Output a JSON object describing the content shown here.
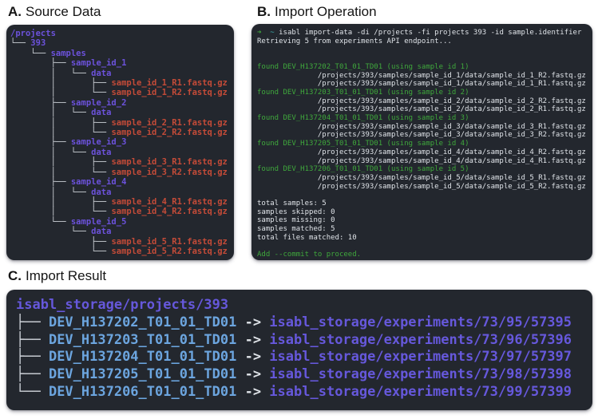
{
  "headings": {
    "a": {
      "prefix": "A.",
      "title": "Source Data"
    },
    "b": {
      "prefix": "B.",
      "title": "Import Operation"
    },
    "c": {
      "prefix": "C.",
      "title": "Import Result"
    }
  },
  "colors": {
    "terminal_bg": "#23272E",
    "tree_line": "#CDD2D8",
    "dir_purple": "#6C52DC",
    "file_red": "#C44B38",
    "text_white": "#DFE3E8",
    "green": "#3FA83C",
    "cyan": "#3CAFAF",
    "ident_blue": "#6CA5DF",
    "path_purple": "#6658DC"
  },
  "terminals": {
    "source_tree": {
      "lines": [
        [
          [
            "dir",
            "/projects"
          ]
        ],
        [
          [
            "tree",
            "└── "
          ],
          [
            "dir",
            "393"
          ]
        ],
        [
          [
            "tree",
            "    └── "
          ],
          [
            "dir",
            "samples"
          ]
        ],
        [
          [
            "tree",
            "        ├── "
          ],
          [
            "dir",
            "sample_id_1"
          ]
        ],
        [
          [
            "tree",
            "        │   └── "
          ],
          [
            "dir",
            "data"
          ]
        ],
        [
          [
            "tree",
            "        │       ├── "
          ],
          [
            "file",
            "sample_id_1_R1.fastq.gz"
          ]
        ],
        [
          [
            "tree",
            "        │       └── "
          ],
          [
            "file",
            "sample_id_1_R2.fastq.gz"
          ]
        ],
        [
          [
            "tree",
            "        ├── "
          ],
          [
            "dir",
            "sample_id_2"
          ]
        ],
        [
          [
            "tree",
            "        │   └── "
          ],
          [
            "dir",
            "data"
          ]
        ],
        [
          [
            "tree",
            "        │       ├── "
          ],
          [
            "file",
            "sample_id_2_R1.fastq.gz"
          ]
        ],
        [
          [
            "tree",
            "        │       └── "
          ],
          [
            "file",
            "sample_id_2_R2.fastq.gz"
          ]
        ],
        [
          [
            "tree",
            "        ├── "
          ],
          [
            "dir",
            "sample_id_3"
          ]
        ],
        [
          [
            "tree",
            "        │   └── "
          ],
          [
            "dir",
            "data"
          ]
        ],
        [
          [
            "tree",
            "        │       ├── "
          ],
          [
            "file",
            "sample_id_3_R1.fastq.gz"
          ]
        ],
        [
          [
            "tree",
            "        │       └── "
          ],
          [
            "file",
            "sample_id_3_R2.fastq.gz"
          ]
        ],
        [
          [
            "tree",
            "        ├── "
          ],
          [
            "dir",
            "sample_id_4"
          ]
        ],
        [
          [
            "tree",
            "        │   └── "
          ],
          [
            "dir",
            "data"
          ]
        ],
        [
          [
            "tree",
            "        │       ├── "
          ],
          [
            "file",
            "sample_id_4_R1.fastq.gz"
          ]
        ],
        [
          [
            "tree",
            "        │       └── "
          ],
          [
            "file",
            "sample_id_4_R2.fastq.gz"
          ]
        ],
        [
          [
            "tree",
            "        └── "
          ],
          [
            "dir",
            "sample_id_5"
          ]
        ],
        [
          [
            "tree",
            "            └── "
          ],
          [
            "dir",
            "data"
          ]
        ],
        [
          [
            "tree",
            "                ├── "
          ],
          [
            "file",
            "sample_id_5_R1.fastq.gz"
          ]
        ],
        [
          [
            "tree",
            "                └── "
          ],
          [
            "file",
            "sample_id_5_R2.fastq.gz"
          ]
        ]
      ]
    },
    "import_operation": {
      "lines": [
        [
          [
            "grn",
            "➜"
          ],
          [
            "txt",
            "  "
          ],
          [
            "cyn",
            "~"
          ],
          [
            "txt",
            " isabl import-data -di /projects -fi projects 393 -id sample.identifier"
          ]
        ],
        [
          [
            "txt",
            "Retrieving 5 from experiments API endpoint..."
          ]
        ],
        [],
        [],
        [
          [
            "grn",
            "found DEV_H137202_T01_01_TD01 (using sample id 1)"
          ]
        ],
        [
          [
            "txt",
            "              /projects/393/samples/sample_id_1/data/sample_id_1_R2.fastq.gz"
          ]
        ],
        [
          [
            "txt",
            "              /projects/393/samples/sample_id_1/data/sample_id_1_R1.fastq.gz"
          ]
        ],
        [
          [
            "grn",
            "found DEV_H137203_T01_01_TD01 (using sample id 2)"
          ]
        ],
        [
          [
            "txt",
            "              /projects/393/samples/sample_id_2/data/sample_id_2_R2.fastq.gz"
          ]
        ],
        [
          [
            "txt",
            "              /projects/393/samples/sample_id_2/data/sample_id_2_R1.fastq.gz"
          ]
        ],
        [
          [
            "grn",
            "found DEV_H137204_T01_01_TD01 (using sample id 3)"
          ]
        ],
        [
          [
            "txt",
            "              /projects/393/samples/sample_id_3/data/sample_id_3_R1.fastq.gz"
          ]
        ],
        [
          [
            "txt",
            "              /projects/393/samples/sample_id_3/data/sample_id_3_R2.fastq.gz"
          ]
        ],
        [
          [
            "grn",
            "found DEV_H137205_T01_01_TD01 (using sample id 4)"
          ]
        ],
        [
          [
            "txt",
            "              /projects/393/samples/sample_id_4/data/sample_id_4_R2.fastq.gz"
          ]
        ],
        [
          [
            "txt",
            "              /projects/393/samples/sample_id_4/data/sample_id_4_R1.fastq.gz"
          ]
        ],
        [
          [
            "grn",
            "found DEV_H137206_T01_01_TD01 (using sample id 5)"
          ]
        ],
        [
          [
            "txt",
            "              /projects/393/samples/sample_id_5/data/sample_id_5_R1.fastq.gz"
          ]
        ],
        [
          [
            "txt",
            "              /projects/393/samples/sample_id_5/data/sample_id_5_R2.fastq.gz"
          ]
        ],
        [],
        [
          [
            "txt",
            "total samples: 5"
          ]
        ],
        [
          [
            "txt",
            "samples skipped: 0"
          ]
        ],
        [
          [
            "txt",
            "samples missing: 0"
          ]
        ],
        [
          [
            "txt",
            "samples matched: 5"
          ]
        ],
        [
          [
            "txt",
            "total files matched: 10"
          ]
        ],
        [],
        [
          [
            "grn",
            "Add --commit to proceed."
          ]
        ]
      ]
    },
    "import_result": {
      "lines": [
        [
          [
            "purc",
            "isabl_storage/projects/393"
          ]
        ],
        [
          [
            "tree",
            "├── "
          ],
          [
            "idb",
            "DEV_H137202_T01_01_TD01"
          ],
          [
            "arw",
            " -> "
          ],
          [
            "purc",
            "isabl_storage/experiments/73/95/57395"
          ]
        ],
        [
          [
            "tree",
            "├── "
          ],
          [
            "idb",
            "DEV_H137203_T01_01_TD01"
          ],
          [
            "arw",
            " -> "
          ],
          [
            "purc",
            "isabl_storage/experiments/73/96/57396"
          ]
        ],
        [
          [
            "tree",
            "├── "
          ],
          [
            "idb",
            "DEV_H137204_T01_01_TD01"
          ],
          [
            "arw",
            " -> "
          ],
          [
            "purc",
            "isabl_storage/experiments/73/97/57397"
          ]
        ],
        [
          [
            "tree",
            "├── "
          ],
          [
            "idb",
            "DEV_H137205_T01_01_TD01"
          ],
          [
            "arw",
            " -> "
          ],
          [
            "purc",
            "isabl_storage/experiments/73/98/57398"
          ]
        ],
        [
          [
            "tree",
            "└── "
          ],
          [
            "idb",
            "DEV_H137206_T01_01_TD01"
          ],
          [
            "arw",
            " -> "
          ],
          [
            "purc",
            "isabl_storage/experiments/73/99/57399"
          ]
        ]
      ]
    }
  }
}
